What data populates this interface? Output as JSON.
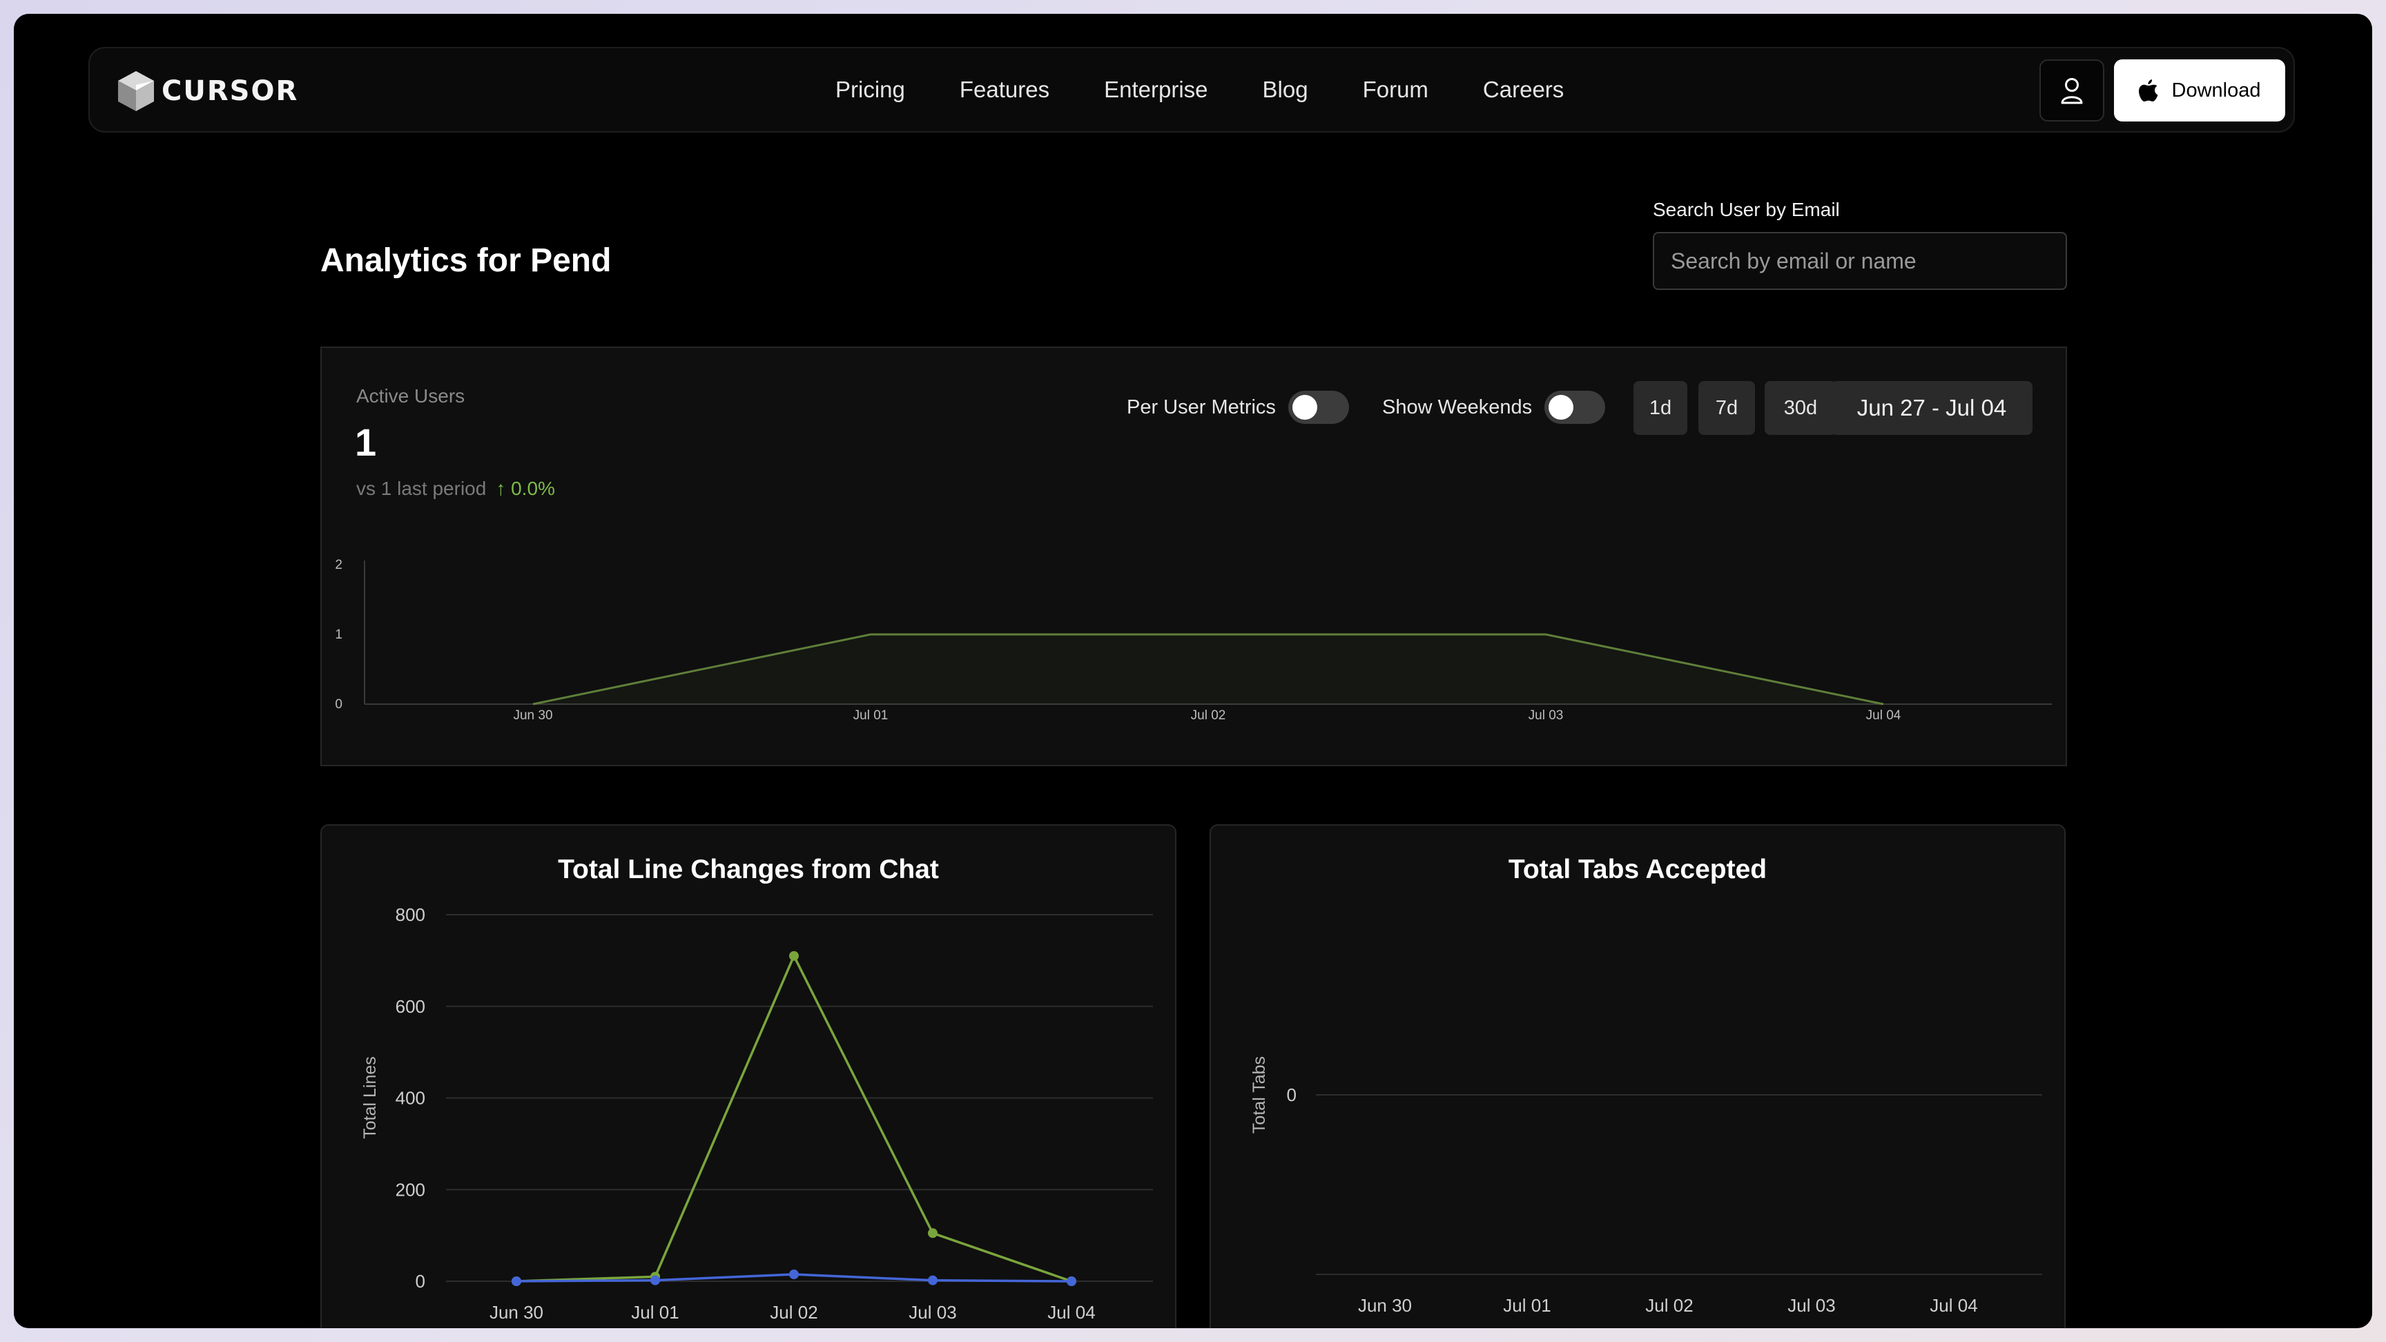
{
  "nav": {
    "brand": "CURSOR",
    "links": [
      "Pricing",
      "Features",
      "Enterprise",
      "Blog",
      "Forum",
      "Careers"
    ],
    "download_label": "Download"
  },
  "header": {
    "title": "Analytics for Pend",
    "search_label": "Search User by Email",
    "search_placeholder": "Search by email or name"
  },
  "active_users": {
    "label": "Active Users",
    "value": "1",
    "compare_text": "vs 1 last period",
    "change": "↑ 0.0%",
    "per_user_label": "Per User Metrics",
    "per_user_on": false,
    "weekends_label": "Show Weekends",
    "weekends_on": false,
    "ranges": [
      "1d",
      "7d",
      "30d"
    ],
    "date_range": "Jun 27 - Jul 04",
    "accent": "#5f7f3a"
  },
  "chart_data": [
    {
      "type": "area",
      "title": "",
      "categories": [
        "Jun 30",
        "Jul 01",
        "Jul 02",
        "Jul 03",
        "Jul 04"
      ],
      "series": [
        {
          "values": [
            0,
            1,
            1,
            1,
            0
          ]
        }
      ],
      "ylim": [
        0,
        2
      ],
      "yticks": [
        0,
        1,
        2
      ],
      "grid": false
    },
    {
      "type": "line",
      "title": "Total Line Changes from Chat",
      "ylabel": "Total Lines",
      "categories": [
        "Jun 30",
        "Jul 01",
        "Jul 02",
        "Jul 03",
        "Jul 04"
      ],
      "series": [
        {
          "color": "#7aa53c",
          "values": [
            0,
            10,
            710,
            105,
            0
          ]
        },
        {
          "color": "#4466d8",
          "values": [
            0,
            2,
            15,
            2,
            0
          ]
        }
      ],
      "ylim": [
        0,
        800
      ],
      "yticks": [
        0,
        200,
        400,
        600,
        800
      ],
      "grid": true
    },
    {
      "type": "line",
      "title": "Total Tabs Accepted",
      "ylabel": "Total Tabs",
      "categories": [
        "Jun 30",
        "Jul 01",
        "Jul 02",
        "Jul 03",
        "Jul 04"
      ],
      "series": [],
      "yticks": [
        0
      ],
      "grid": true
    }
  ]
}
